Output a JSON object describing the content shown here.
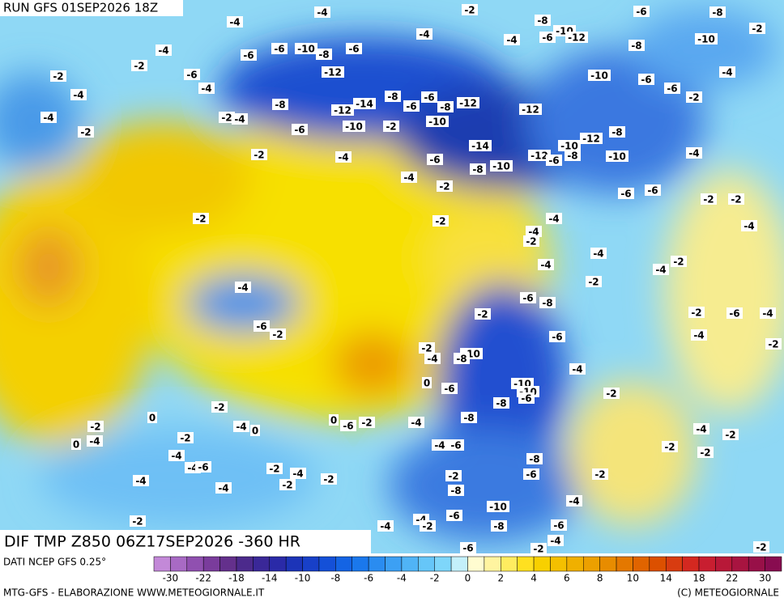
{
  "header": {
    "run": "RUN GFS 01SEP2026 18Z",
    "title": "DIF TMP Z850 06Z17SEP2026 -360 HR"
  },
  "footer": {
    "source": "DATI NCEP GFS 0.25°",
    "credit": "MTG-GFS - ELABORAZIONE WWW.METEOGIORNALE.IT",
    "copyright": "(C) METEOGIORNALE"
  },
  "colorbar": {
    "colors": [
      "#c389d8",
      "#a86ac4",
      "#9050b0",
      "#7a3c9c",
      "#64308c",
      "#4c2a8c",
      "#3a2898",
      "#2a2aa8",
      "#1c34b8",
      "#1840c8",
      "#1450d8",
      "#1464e4",
      "#1a78ec",
      "#2a8cf0",
      "#3ca0f4",
      "#50b4f6",
      "#66c6f8",
      "#7ed6fa",
      "#c4f0fa",
      "#fffcd0",
      "#fff4a0",
      "#ffec60",
      "#ffe020",
      "#f8d000",
      "#f4c000",
      "#f0b000",
      "#eca000",
      "#e88c00",
      "#e47800",
      "#e06400",
      "#dc5000",
      "#d83c10",
      "#d42820",
      "#c81e30",
      "#b81838",
      "#a81440",
      "#981048",
      "#880c50"
    ],
    "labels": [
      -30,
      -22,
      -18,
      -14,
      -10,
      -8,
      -6,
      -4,
      -2,
      0,
      2,
      4,
      6,
      8,
      10,
      14,
      18,
      22,
      30
    ]
  },
  "map_labels": [
    -4,
    -4,
    -2,
    -8,
    -10,
    -6,
    -12,
    -6,
    -8,
    -2,
    -4,
    -4,
    -8,
    -10,
    -4,
    -6,
    -6,
    -10,
    -8,
    -6,
    -2,
    -2,
    -6,
    -4,
    -12,
    -4,
    -10,
    -6,
    -6,
    -4,
    -2,
    -8,
    -12,
    -14,
    -8,
    -6,
    -6,
    -8,
    -12,
    -12,
    -4,
    -2,
    -4,
    -2,
    -6,
    -10,
    -2,
    -10,
    -8,
    -12,
    -10,
    -14,
    -12,
    -6,
    -8,
    -10,
    -4,
    -2,
    -4,
    -6,
    -8,
    -10,
    -4,
    -2,
    -6,
    -6,
    -2,
    -2,
    -2,
    -2,
    -4,
    -4,
    -2,
    -4,
    -4,
    -4,
    -4,
    -2,
    -4,
    -2,
    -6,
    -8,
    -2,
    -2,
    -6,
    -4,
    -6,
    -2,
    -6,
    -4,
    -2,
    -2,
    -4,
    -10,
    -8,
    -4,
    0,
    -6,
    -10,
    -10,
    -6,
    -8,
    -2,
    -2,
    0,
    -2,
    -4,
    0,
    0,
    -6,
    -2,
    -4,
    -8,
    -4,
    -2,
    -4,
    -2,
    0,
    -4,
    -6,
    -2,
    -2,
    -4,
    -4,
    -6,
    -8,
    -2,
    -4,
    -2,
    -2,
    -2,
    -6,
    -2,
    -4,
    -4,
    -8,
    -4,
    -10,
    -2,
    -4,
    -4,
    -2,
    -6,
    -6,
    -8,
    -4,
    -2,
    -6,
    -2
  ]
}
